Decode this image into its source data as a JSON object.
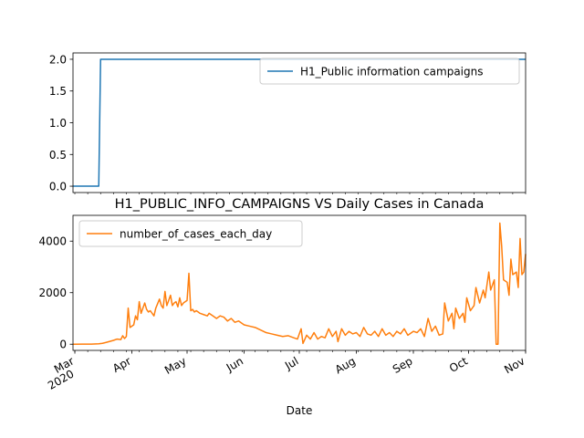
{
  "chart_data": [
    {
      "type": "line",
      "title": "",
      "xlabel": "",
      "ylabel": "",
      "ylim": [
        -0.1,
        2.1
      ],
      "y_ticks": [
        "0.0",
        "0.5",
        "1.0",
        "1.5",
        "2.0"
      ],
      "x_range": [
        "2020-02-29",
        "2020-11-01"
      ],
      "legend_position": "top-right",
      "series": [
        {
          "name": "H1_Public information campaigns",
          "color": "#1f77b4",
          "points": [
            [
              "2020-02-29",
              0
            ],
            [
              "2020-03-14",
              0
            ],
            [
              "2020-03-15",
              2
            ],
            [
              "2020-11-01",
              2
            ]
          ]
        }
      ]
    },
    {
      "type": "line",
      "title": "H1_PUBLIC_INFO_CAMPAIGNS VS Daily Cases in Canada",
      "xlabel": "Date",
      "ylabel": "",
      "ylim": [
        -240,
        5000
      ],
      "y_ticks": [
        "0",
        "2000",
        "4000"
      ],
      "x_range": [
        "2020-02-29",
        "2020-11-01"
      ],
      "x_ticks": [
        {
          "date": "2020-03-01",
          "label": "Mar",
          "sublabel": "2020"
        },
        {
          "date": "2020-04-01",
          "label": "Apr"
        },
        {
          "date": "2020-05-01",
          "label": "May"
        },
        {
          "date": "2020-06-01",
          "label": "Jun"
        },
        {
          "date": "2020-07-01",
          "label": "Jul"
        },
        {
          "date": "2020-08-01",
          "label": "Aug"
        },
        {
          "date": "2020-09-01",
          "label": "Sep"
        },
        {
          "date": "2020-10-01",
          "label": "Oct"
        },
        {
          "date": "2020-11-01",
          "label": "Nov"
        }
      ],
      "legend_position": "top-left",
      "series": [
        {
          "name": "number_of_cases_each_day",
          "color": "#ff7f0e",
          "points": [
            [
              "2020-02-29",
              0
            ],
            [
              "2020-03-05",
              3
            ],
            [
              "2020-03-10",
              5
            ],
            [
              "2020-03-14",
              15
            ],
            [
              "2020-03-16",
              35
            ],
            [
              "2020-03-18",
              70
            ],
            [
              "2020-03-20",
              110
            ],
            [
              "2020-03-22",
              150
            ],
            [
              "2020-03-24",
              200
            ],
            [
              "2020-03-26",
              180
            ],
            [
              "2020-03-27",
              330
            ],
            [
              "2020-03-28",
              220
            ],
            [
              "2020-03-29",
              300
            ],
            [
              "2020-03-30",
              1400
            ],
            [
              "2020-03-31",
              650
            ],
            [
              "2020-04-02",
              750
            ],
            [
              "2020-04-03",
              1100
            ],
            [
              "2020-04-04",
              950
            ],
            [
              "2020-04-05",
              1650
            ],
            [
              "2020-04-06",
              1200
            ],
            [
              "2020-04-07",
              1400
            ],
            [
              "2020-04-08",
              1600
            ],
            [
              "2020-04-09",
              1350
            ],
            [
              "2020-04-10",
              1250
            ],
            [
              "2020-04-11",
              1300
            ],
            [
              "2020-04-13",
              1100
            ],
            [
              "2020-04-14",
              1400
            ],
            [
              "2020-04-16",
              1750
            ],
            [
              "2020-04-17",
              1500
            ],
            [
              "2020-04-18",
              1400
            ],
            [
              "2020-04-19",
              2050
            ],
            [
              "2020-04-20",
              1500
            ],
            [
              "2020-04-21",
              1700
            ],
            [
              "2020-04-22",
              1900
            ],
            [
              "2020-04-23",
              1500
            ],
            [
              "2020-04-24",
              1600
            ],
            [
              "2020-04-25",
              1650
            ],
            [
              "2020-04-26",
              1450
            ],
            [
              "2020-04-27",
              1800
            ],
            [
              "2020-04-28",
              1500
            ],
            [
              "2020-04-29",
              1600
            ],
            [
              "2020-04-30",
              1650
            ],
            [
              "2020-05-01",
              1700
            ],
            [
              "2020-05-02",
              2750
            ],
            [
              "2020-05-03",
              1300
            ],
            [
              "2020-05-04",
              1350
            ],
            [
              "2020-05-05",
              1250
            ],
            [
              "2020-05-06",
              1300
            ],
            [
              "2020-05-07",
              1250
            ],
            [
              "2020-05-08",
              1200
            ],
            [
              "2020-05-10",
              1150
            ],
            [
              "2020-05-12",
              1100
            ],
            [
              "2020-05-13",
              1200
            ],
            [
              "2020-05-15",
              1100
            ],
            [
              "2020-05-17",
              1000
            ],
            [
              "2020-05-19",
              1100
            ],
            [
              "2020-05-21",
              1050
            ],
            [
              "2020-05-23",
              900
            ],
            [
              "2020-05-25",
              1000
            ],
            [
              "2020-05-27",
              850
            ],
            [
              "2020-05-29",
              900
            ],
            [
              "2020-06-01",
              750
            ],
            [
              "2020-06-04",
              700
            ],
            [
              "2020-06-07",
              650
            ],
            [
              "2020-06-10",
              550
            ],
            [
              "2020-06-13",
              450
            ],
            [
              "2020-06-16",
              400
            ],
            [
              "2020-06-19",
              350
            ],
            [
              "2020-06-22",
              300
            ],
            [
              "2020-06-25",
              330
            ],
            [
              "2020-06-28",
              250
            ],
            [
              "2020-06-30",
              200
            ],
            [
              "2020-07-02",
              600
            ],
            [
              "2020-07-03",
              30
            ],
            [
              "2020-07-05",
              350
            ],
            [
              "2020-07-07",
              200
            ],
            [
              "2020-07-09",
              450
            ],
            [
              "2020-07-11",
              200
            ],
            [
              "2020-07-13",
              300
            ],
            [
              "2020-07-15",
              250
            ],
            [
              "2020-07-17",
              600
            ],
            [
              "2020-07-19",
              300
            ],
            [
              "2020-07-21",
              500
            ],
            [
              "2020-07-22",
              100
            ],
            [
              "2020-07-24",
              600
            ],
            [
              "2020-07-26",
              350
            ],
            [
              "2020-07-28",
              500
            ],
            [
              "2020-07-30",
              400
            ],
            [
              "2020-08-01",
              450
            ],
            [
              "2020-08-03",
              300
            ],
            [
              "2020-08-05",
              650
            ],
            [
              "2020-08-07",
              400
            ],
            [
              "2020-08-09",
              350
            ],
            [
              "2020-08-11",
              500
            ],
            [
              "2020-08-13",
              300
            ],
            [
              "2020-08-15",
              600
            ],
            [
              "2020-08-17",
              350
            ],
            [
              "2020-08-19",
              450
            ],
            [
              "2020-08-21",
              300
            ],
            [
              "2020-08-23",
              500
            ],
            [
              "2020-08-25",
              400
            ],
            [
              "2020-08-27",
              600
            ],
            [
              "2020-08-29",
              350
            ],
            [
              "2020-09-01",
              500
            ],
            [
              "2020-09-03",
              450
            ],
            [
              "2020-09-05",
              600
            ],
            [
              "2020-09-07",
              300
            ],
            [
              "2020-09-09",
              1000
            ],
            [
              "2020-09-11",
              500
            ],
            [
              "2020-09-13",
              700
            ],
            [
              "2020-09-15",
              350
            ],
            [
              "2020-09-17",
              400
            ],
            [
              "2020-09-18",
              1600
            ],
            [
              "2020-09-20",
              900
            ],
            [
              "2020-09-22",
              1200
            ],
            [
              "2020-09-23",
              600
            ],
            [
              "2020-09-24",
              1400
            ],
            [
              "2020-09-26",
              1000
            ],
            [
              "2020-09-28",
              1200
            ],
            [
              "2020-09-29",
              850
            ],
            [
              "2020-09-30",
              1800
            ],
            [
              "2020-10-02",
              1300
            ],
            [
              "2020-10-04",
              1500
            ],
            [
              "2020-10-05",
              2200
            ],
            [
              "2020-10-07",
              1600
            ],
            [
              "2020-10-09",
              2100
            ],
            [
              "2020-10-10",
              1800
            ],
            [
              "2020-10-12",
              2800
            ],
            [
              "2020-10-13",
              2100
            ],
            [
              "2020-10-15",
              2500
            ],
            [
              "2020-10-16",
              0
            ],
            [
              "2020-10-17",
              0
            ],
            [
              "2020-10-18",
              4700
            ],
            [
              "2020-10-19",
              3800
            ],
            [
              "2020-10-20",
              2500
            ],
            [
              "2020-10-22",
              2400
            ],
            [
              "2020-10-23",
              1900
            ],
            [
              "2020-10-24",
              3300
            ],
            [
              "2020-10-25",
              2700
            ],
            [
              "2020-10-27",
              2800
            ],
            [
              "2020-10-28",
              2200
            ],
            [
              "2020-10-29",
              4100
            ],
            [
              "2020-10-30",
              2700
            ],
            [
              "2020-10-31",
              2800
            ],
            [
              "2020-11-01",
              3500
            ]
          ]
        }
      ]
    }
  ]
}
